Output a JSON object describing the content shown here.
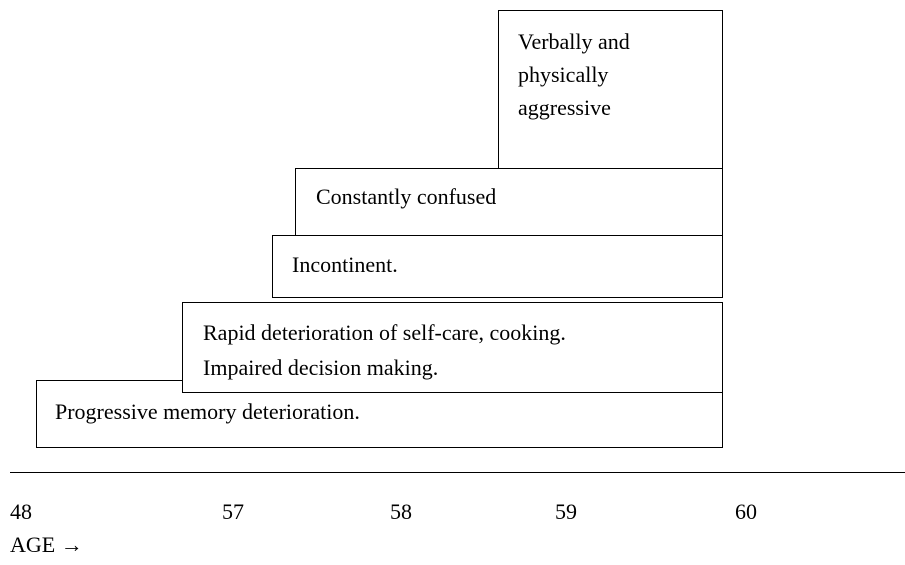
{
  "stages": [
    {
      "lines": [
        "Progressive memory deterioration."
      ]
    },
    {
      "lines": [
        "Rapid deterioration of self-care, cooking.",
        "Impaired decision making."
      ]
    },
    {
      "lines": [
        "Incontinent."
      ]
    },
    {
      "lines": [
        "Constantly confused"
      ]
    },
    {
      "lines": [
        "Verbally and",
        "physically",
        "aggressive"
      ]
    }
  ],
  "axis": {
    "ticks": [
      "48",
      "57",
      "58",
      "59",
      "60"
    ],
    "label": "AGE →"
  }
}
